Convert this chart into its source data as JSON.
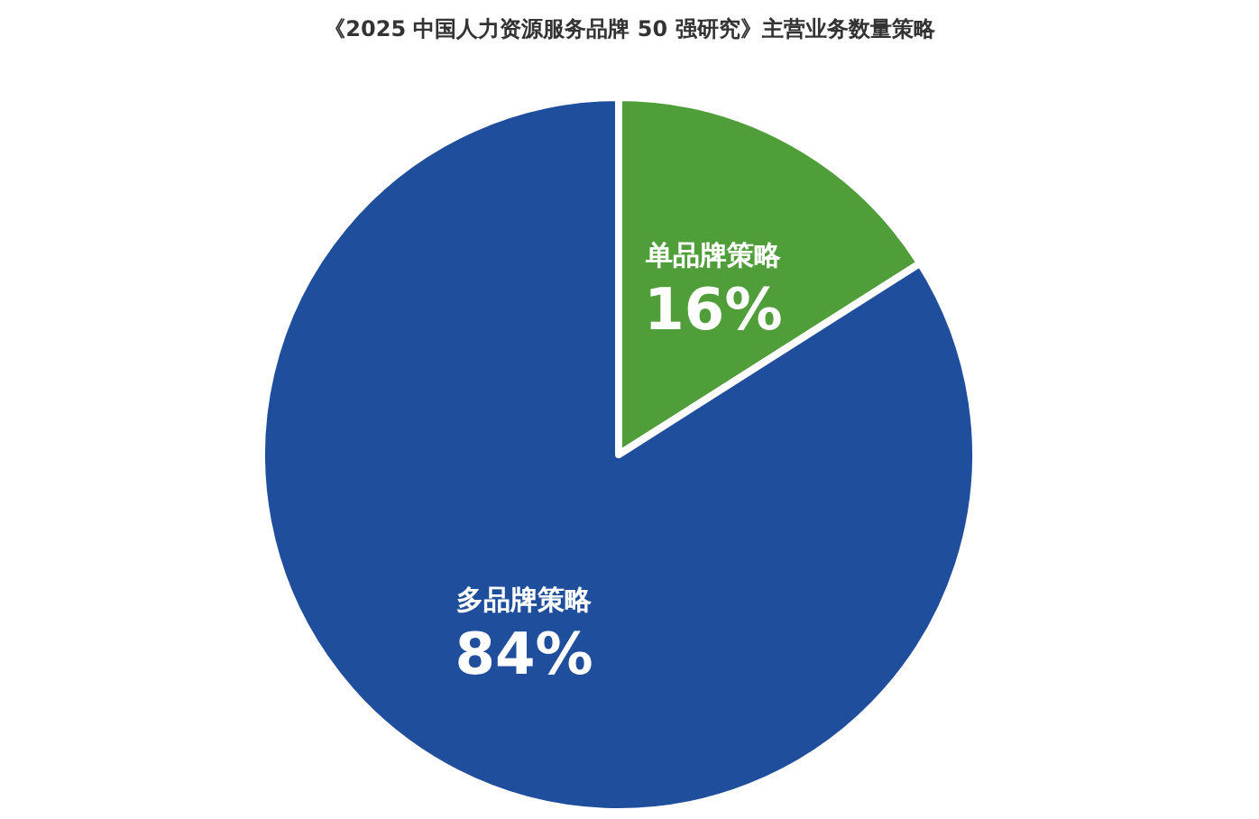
{
  "chart_data": {
    "type": "pie",
    "title": "《2025 中国人力资源服务品牌 50 强研究》主营业务数量策略",
    "categories": [
      "单品牌策略",
      "多品牌策略"
    ],
    "values": [
      16,
      84
    ],
    "value_labels": [
      "16%",
      "84%"
    ],
    "colors": [
      "#4f9e3a",
      "#1f4e9c"
    ]
  }
}
